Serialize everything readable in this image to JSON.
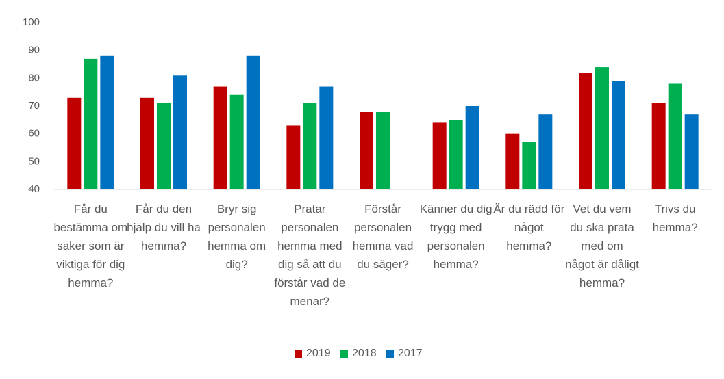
{
  "chart_data": {
    "type": "bar",
    "categories": [
      "Får du bestämma om saker som är viktiga för dig hemma?",
      "Får du den hjälp du vill ha hemma?",
      "Bryr sig personalen hemma om dig?",
      "Pratar personalen hemma med dig så att du förstår vad de menar?",
      "Förstår personalen hemma vad du säger?",
      "Känner du dig trygg med personalen hemma?",
      "Är du rädd för något hemma?",
      "Vet du vem du ska prata med om något är dåligt hemma?",
      "Trivs du hemma?"
    ],
    "series": [
      {
        "name": "2019",
        "color": "#c00000",
        "values": [
          73,
          73,
          77,
          63,
          68,
          64,
          60,
          82,
          71
        ]
      },
      {
        "name": "2018",
        "color": "#00b050",
        "values": [
          87,
          71,
          74,
          71,
          68,
          65,
          57,
          84,
          78
        ]
      },
      {
        "name": "2017",
        "color": "#0070c0",
        "values": [
          88,
          81,
          88,
          77,
          null,
          70,
          67,
          79,
          67
        ]
      }
    ],
    "ylim": [
      40,
      100
    ],
    "yticks": [
      40,
      50,
      60,
      70,
      80,
      90,
      100
    ],
    "grid": false,
    "legend": "bottom"
  }
}
